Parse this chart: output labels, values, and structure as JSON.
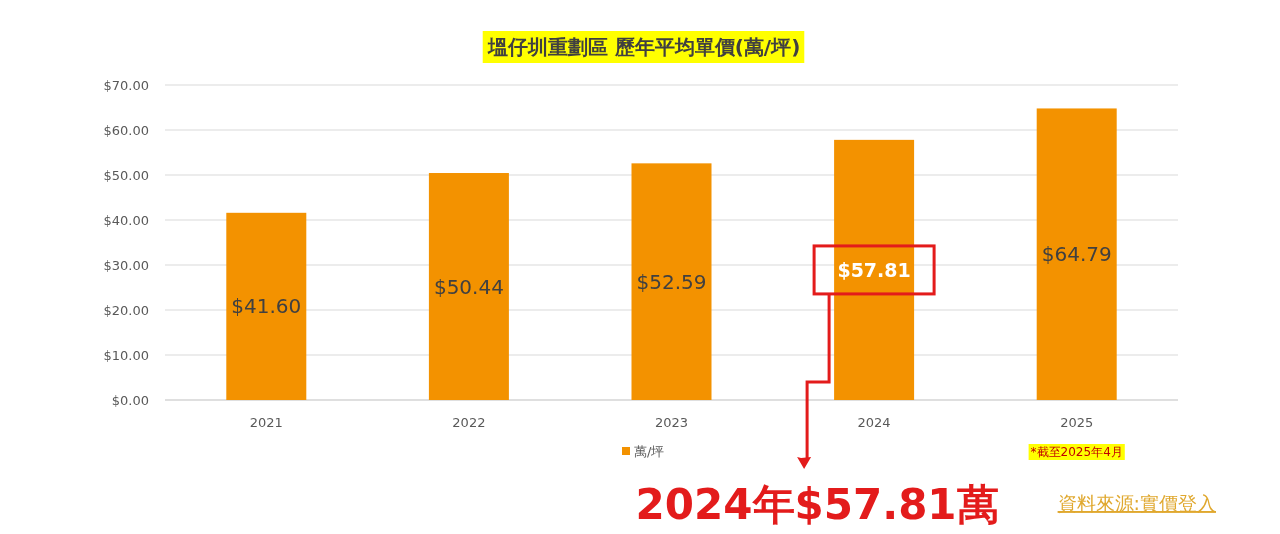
{
  "chart_data": {
    "type": "bar",
    "title": "塭仔圳重劃區 歷年平均單價(萬/坪)",
    "categories": [
      "2021",
      "2022",
      "2023",
      "2024",
      "2025"
    ],
    "series": [
      {
        "name": "萬/坪",
        "color": "#f39200",
        "values": [
          41.6,
          50.44,
          52.59,
          57.81,
          64.79
        ],
        "value_labels": [
          "$41.60",
          "$50.44",
          "$52.59",
          "$57.81",
          "$64.79"
        ]
      }
    ],
    "ylim": [
      0,
      70
    ],
    "yticks": [
      {
        "value": 0,
        "label": "$0.00"
      },
      {
        "value": 10,
        "label": "$10.00"
      },
      {
        "value": 20,
        "label": "$20.00"
      },
      {
        "value": 30,
        "label": "$30.00"
      },
      {
        "value": 40,
        "label": "$40.00"
      },
      {
        "value": 50,
        "label": "$50.00"
      },
      {
        "value": 60,
        "label": "$60.00"
      },
      {
        "value": 70,
        "label": "$70.00"
      }
    ],
    "grid": "y",
    "legend": "bottom",
    "annotations": [
      "2024年$57.81萬",
      "*截至2025年4月",
      "資料來源:實價登入"
    ]
  }
}
